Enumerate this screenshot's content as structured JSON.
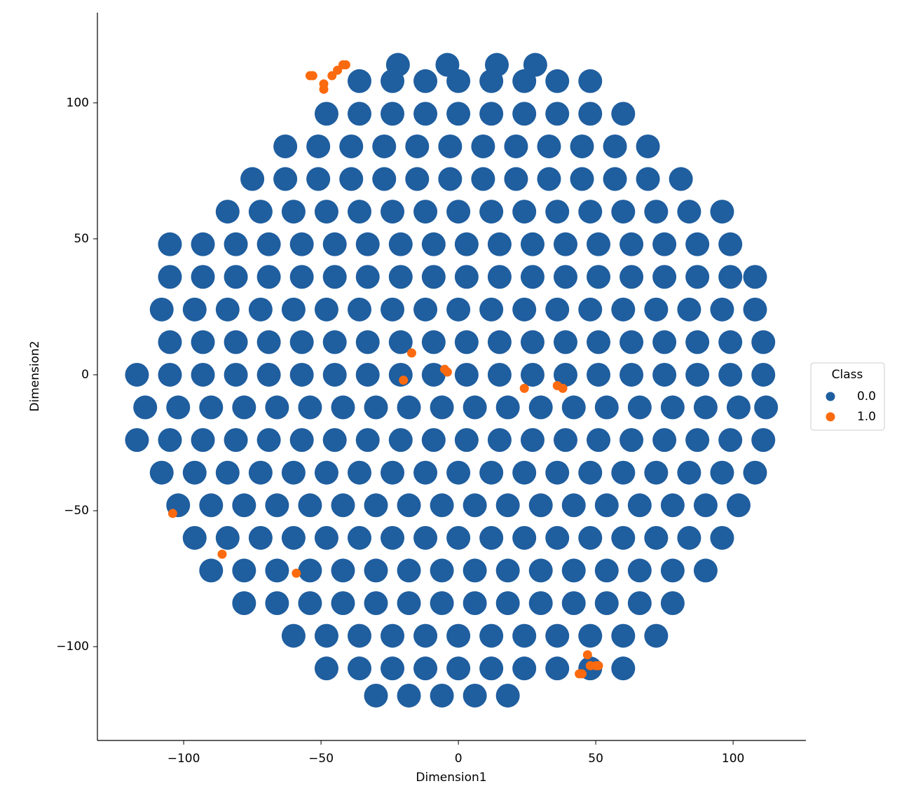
{
  "chart_data": {
    "type": "scatter",
    "x_label": "Dimension1",
    "y_label": "Dimension2",
    "xlim": [
      -131.4,
      126.5
    ],
    "ylim": [
      -134.5,
      133.2
    ],
    "xticks": [
      {
        "value": -100,
        "label": "−100"
      },
      {
        "value": -50,
        "label": "−50"
      },
      0,
      50,
      100
    ],
    "yticks": [
      {
        "value": -100,
        "label": "−100"
      },
      {
        "value": -50,
        "label": "−50"
      },
      0,
      50,
      100
    ],
    "grid": false,
    "legend_title": "Class",
    "legend_position": "right",
    "series": [
      {
        "name": "0.0",
        "color": "#1f5e9f",
        "x": [
          -22,
          -4,
          14,
          28,
          -36,
          -24,
          -12,
          0,
          12,
          24,
          36,
          48,
          -48,
          -36,
          -24,
          -12,
          0,
          12,
          24,
          36,
          48,
          60,
          -63,
          -51,
          -39,
          -27,
          -15,
          -3,
          9,
          21,
          33,
          45,
          57,
          69,
          -75,
          -63,
          -51,
          -39,
          -27,
          -15,
          -3,
          9,
          21,
          33,
          45,
          57,
          69,
          81,
          -84,
          -72,
          -60,
          -48,
          -36,
          -24,
          -12,
          0,
          12,
          24,
          36,
          48,
          60,
          72,
          84,
          96,
          -105,
          -93,
          -81,
          -69,
          -57,
          -45,
          -33,
          -21,
          -9,
          3,
          15,
          27,
          39,
          51,
          63,
          75,
          87,
          99,
          -105,
          -93,
          -81,
          -69,
          -57,
          -45,
          -33,
          -21,
          -9,
          3,
          15,
          27,
          39,
          51,
          63,
          75,
          87,
          99,
          108,
          -108,
          -96,
          -84,
          -72,
          -60,
          -48,
          -36,
          -24,
          -12,
          0,
          12,
          24,
          36,
          48,
          60,
          72,
          84,
          96,
          108,
          -105,
          -93,
          -81,
          -69,
          -57,
          -45,
          -33,
          -21,
          -9,
          3,
          15,
          27,
          39,
          51,
          63,
          75,
          87,
          99,
          111,
          -117,
          -105,
          -93,
          -81,
          -69,
          -57,
          -45,
          -33,
          -21,
          -9,
          3,
          15,
          27,
          39,
          51,
          63,
          75,
          87,
          99,
          111,
          -114,
          -102,
          -90,
          -78,
          -66,
          -54,
          -42,
          -30,
          -18,
          -6,
          6,
          18,
          30,
          42,
          54,
          66,
          78,
          90,
          102,
          112,
          -117,
          -105,
          -93,
          -81,
          -69,
          -57,
          -45,
          -33,
          -21,
          -9,
          3,
          15,
          27,
          39,
          51,
          63,
          75,
          87,
          99,
          111,
          -108,
          -96,
          -84,
          -72,
          -60,
          -48,
          -36,
          -24,
          -12,
          0,
          12,
          24,
          36,
          48,
          60,
          72,
          84,
          96,
          108,
          -102,
          -90,
          -78,
          -66,
          -54,
          -42,
          -30,
          -18,
          -6,
          6,
          18,
          30,
          42,
          54,
          66,
          78,
          90,
          102,
          -96,
          -84,
          -72,
          -60,
          -48,
          -36,
          -24,
          -12,
          0,
          12,
          24,
          36,
          48,
          60,
          72,
          84,
          96,
          -90,
          -78,
          -66,
          -54,
          -42,
          -30,
          -18,
          -6,
          6,
          18,
          30,
          42,
          54,
          66,
          78,
          90,
          -78,
          -66,
          -54,
          -42,
          -30,
          -18,
          -6,
          6,
          18,
          30,
          42,
          54,
          66,
          78,
          -60,
          -48,
          -36,
          -24,
          -12,
          0,
          12,
          24,
          36,
          48,
          60,
          72,
          -48,
          -36,
          -24,
          -12,
          0,
          12,
          24,
          36,
          48,
          60,
          -30,
          -18,
          -6,
          6,
          18
        ],
        "y": [
          114,
          114,
          114,
          114,
          108,
          108,
          108,
          108,
          108,
          108,
          108,
          108,
          96,
          96,
          96,
          96,
          96,
          96,
          96,
          96,
          96,
          96,
          84,
          84,
          84,
          84,
          84,
          84,
          84,
          84,
          84,
          84,
          84,
          84,
          72,
          72,
          72,
          72,
          72,
          72,
          72,
          72,
          72,
          72,
          72,
          72,
          72,
          72,
          60,
          60,
          60,
          60,
          60,
          60,
          60,
          60,
          60,
          60,
          60,
          60,
          60,
          60,
          60,
          60,
          48,
          48,
          48,
          48,
          48,
          48,
          48,
          48,
          48,
          48,
          48,
          48,
          48,
          48,
          48,
          48,
          48,
          48,
          36,
          36,
          36,
          36,
          36,
          36,
          36,
          36,
          36,
          36,
          36,
          36,
          36,
          36,
          36,
          36,
          36,
          36,
          36,
          24,
          24,
          24,
          24,
          24,
          24,
          24,
          24,
          24,
          24,
          24,
          24,
          24,
          24,
          24,
          24,
          24,
          24,
          24,
          12,
          12,
          12,
          12,
          12,
          12,
          12,
          12,
          12,
          12,
          12,
          12,
          12,
          12,
          12,
          12,
          12,
          12,
          12,
          0,
          0,
          0,
          0,
          0,
          0,
          0,
          0,
          0,
          0,
          0,
          0,
          0,
          0,
          0,
          0,
          0,
          0,
          0,
          0,
          -12,
          -12,
          -12,
          -12,
          -12,
          -12,
          -12,
          -12,
          -12,
          -12,
          -12,
          -12,
          -12,
          -12,
          -12,
          -12,
          -12,
          -12,
          -12,
          -12,
          -24,
          -24,
          -24,
          -24,
          -24,
          -24,
          -24,
          -24,
          -24,
          -24,
          -24,
          -24,
          -24,
          -24,
          -24,
          -24,
          -24,
          -24,
          -24,
          -24,
          -36,
          -36,
          -36,
          -36,
          -36,
          -36,
          -36,
          -36,
          -36,
          -36,
          -36,
          -36,
          -36,
          -36,
          -36,
          -36,
          -36,
          -36,
          -36,
          -48,
          -48,
          -48,
          -48,
          -48,
          -48,
          -48,
          -48,
          -48,
          -48,
          -48,
          -48,
          -48,
          -48,
          -48,
          -48,
          -48,
          -48,
          -60,
          -60,
          -60,
          -60,
          -60,
          -60,
          -60,
          -60,
          -60,
          -60,
          -60,
          -60,
          -60,
          -60,
          -60,
          -60,
          -60,
          -72,
          -72,
          -72,
          -72,
          -72,
          -72,
          -72,
          -72,
          -72,
          -72,
          -72,
          -72,
          -72,
          -72,
          -72,
          -72,
          -84,
          -84,
          -84,
          -84,
          -84,
          -84,
          -84,
          -84,
          -84,
          -84,
          -84,
          -84,
          -84,
          -84,
          -96,
          -96,
          -96,
          -96,
          -96,
          -96,
          -96,
          -96,
          -96,
          -96,
          -96,
          -96,
          -108,
          -108,
          -108,
          -108,
          -108,
          -108,
          -108,
          -108,
          -108,
          -108,
          -118,
          -118,
          -118,
          -118,
          -118
        ]
      },
      {
        "name": "1.0",
        "color": "#fb6a0e",
        "x": [
          -54,
          -53,
          -49,
          -49,
          -46,
          -44,
          -42,
          -41,
          -17,
          -20,
          -5,
          -4,
          24,
          36,
          38,
          -104,
          -86,
          -59,
          47,
          48,
          50,
          51,
          44,
          45
        ],
        "y": [
          110,
          110,
          107,
          105,
          110,
          112,
          114,
          114,
          8,
          -2,
          2,
          1,
          -5,
          -4,
          -5,
          -51,
          -66,
          -73,
          -103,
          -107,
          -107,
          -107,
          -110,
          -110
        ]
      }
    ]
  }
}
